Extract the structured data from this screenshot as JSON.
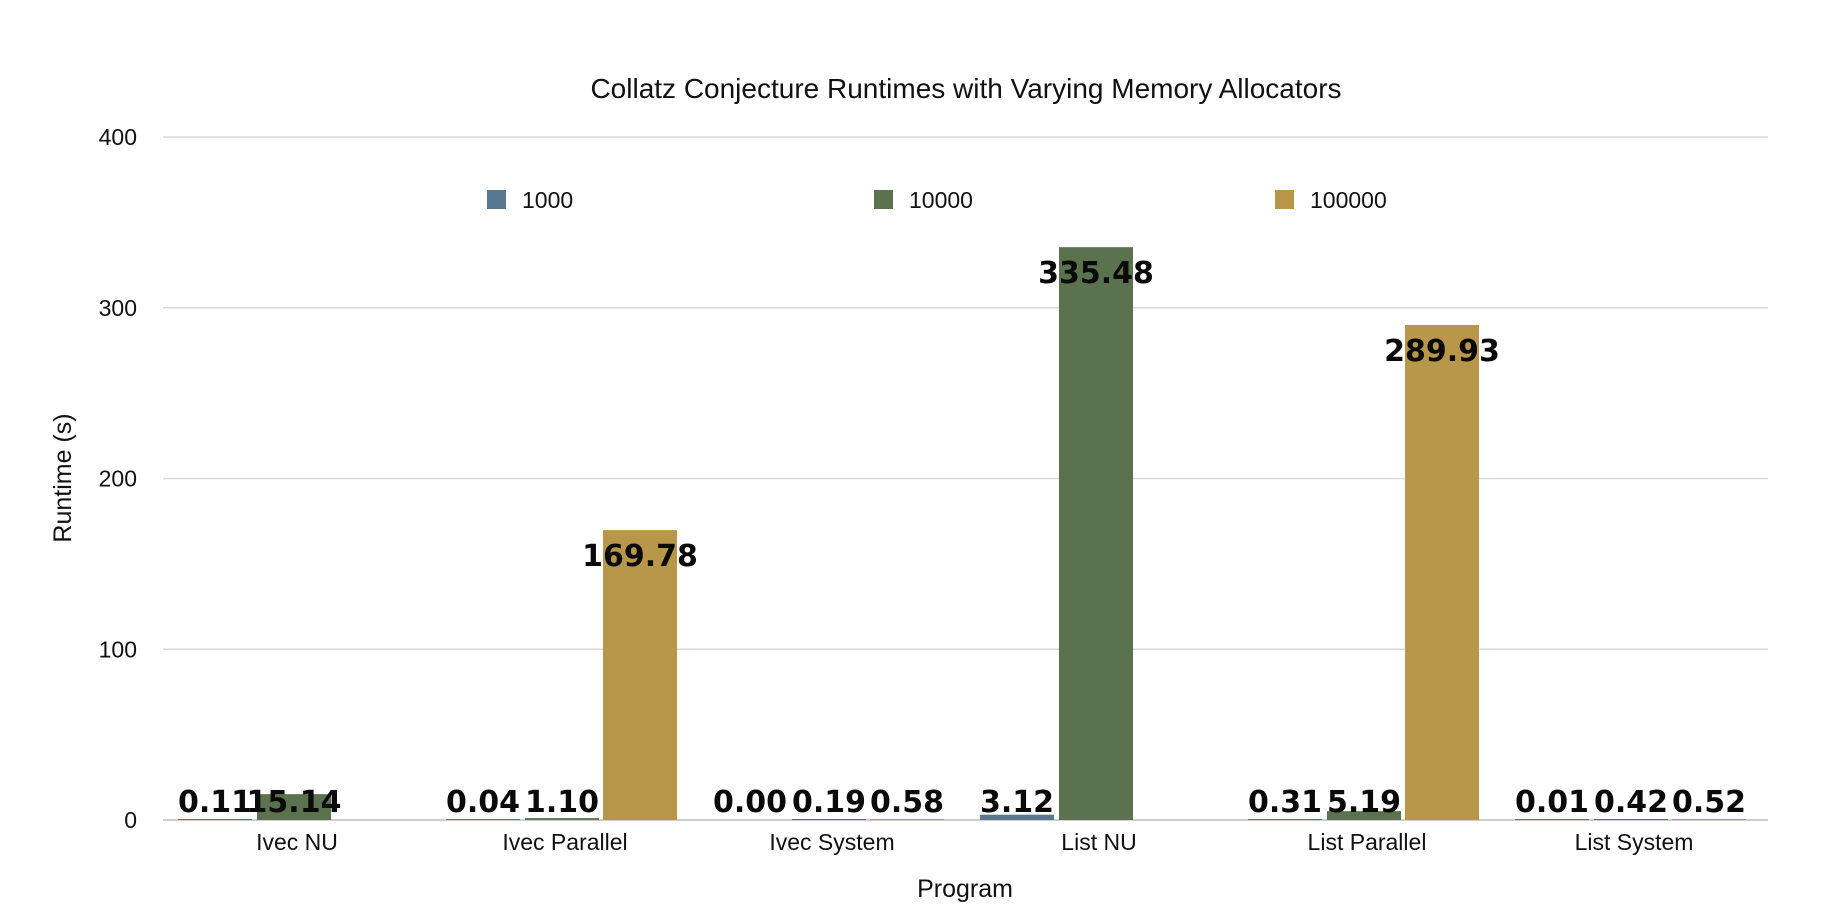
{
  "chart_data": {
    "type": "bar",
    "title": "Collatz Conjecture Runtimes with Varying Memory Allocators",
    "xlabel": "Program",
    "ylabel": "Runtime (s)",
    "ylim": [
      0,
      400
    ],
    "yticks": [
      0,
      100,
      200,
      300,
      400
    ],
    "grid": true,
    "legend_position": "top",
    "categories": [
      "Ivec NU",
      "Ivec Parallel",
      "Ivec System",
      "List NU",
      "List Parallel",
      "List System"
    ],
    "series": [
      {
        "name": "1000",
        "color": "#587791",
        "values": [
          0.11,
          0.04,
          0.0,
          3.12,
          0.31,
          0.01
        ],
        "labels": [
          "0.11",
          "0.04",
          "0.00",
          "3.12",
          "0.31",
          "0.01"
        ]
      },
      {
        "name": "10000",
        "color": "#5b724e",
        "values": [
          15.14,
          1.1,
          0.19,
          335.48,
          5.19,
          0.42
        ],
        "labels": [
          "15.14",
          "1.10",
          "0.19",
          "335.48",
          "5.19",
          "0.42"
        ]
      },
      {
        "name": "100000",
        "color": "#b8974a",
        "values": [
          null,
          169.78,
          0.58,
          null,
          289.93,
          0.52
        ],
        "labels": [
          null,
          "169.78",
          "0.58",
          null,
          "289.93",
          "0.52"
        ]
      }
    ]
  }
}
